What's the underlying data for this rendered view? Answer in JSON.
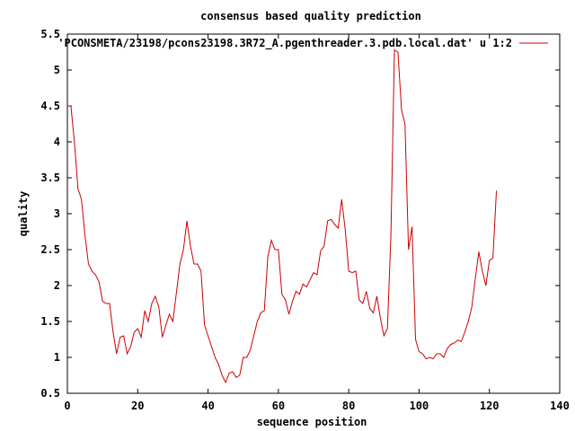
{
  "chart_data": {
    "type": "line",
    "title": "consensus based quality prediction",
    "xlabel": "sequence position",
    "ylabel": "quality",
    "xlim": [
      0,
      140
    ],
    "ylim": [
      0.5,
      5.5
    ],
    "xticks": [
      0,
      20,
      40,
      60,
      80,
      100,
      120,
      140
    ],
    "yticks": [
      0.5,
      1,
      1.5,
      2,
      2.5,
      3,
      3.5,
      4,
      4.5,
      5,
      5.5
    ],
    "xtick_labels": [
      "0",
      "20",
      "40",
      "60",
      "80",
      "100",
      "120",
      "140"
    ],
    "ytick_labels": [
      "0.5",
      "1",
      "1.5",
      "2",
      "2.5",
      "3",
      "3.5",
      "4",
      "4.5",
      "5",
      "5.5"
    ],
    "grid": false,
    "legend_position": "top-right",
    "series": [
      {
        "name": "'PCONSMETA/23198/pcons23198.3R72_A.pgenthreader.3.pdb.local.dat' u 1:2",
        "color": "#cc0000",
        "x": [
          0,
          1,
          2,
          3,
          4,
          5,
          6,
          7,
          8,
          9,
          10,
          11,
          12,
          13,
          14,
          15,
          16,
          17,
          18,
          19,
          20,
          21,
          22,
          23,
          24,
          25,
          26,
          27,
          28,
          29,
          30,
          31,
          32,
          33,
          34,
          35,
          36,
          37,
          38,
          39,
          40,
          41,
          42,
          43,
          44,
          45,
          46,
          47,
          48,
          49,
          50,
          51,
          52,
          53,
          54,
          55,
          56,
          57,
          58,
          59,
          60,
          61,
          62,
          63,
          64,
          65,
          66,
          67,
          68,
          69,
          70,
          71,
          72,
          73,
          74,
          75,
          76,
          77,
          78,
          79,
          80,
          81,
          82,
          83,
          84,
          85,
          86,
          87,
          88,
          89,
          90,
          91,
          92,
          93,
          94,
          95,
          96,
          97,
          98,
          99,
          100,
          101,
          102,
          103,
          104,
          105,
          106,
          107,
          108,
          109,
          110,
          111,
          112,
          113,
          114,
          115,
          116,
          117,
          118,
          119,
          120,
          121,
          122
        ],
        "y": [
          4.5,
          4.5,
          4.0,
          3.35,
          3.2,
          2.7,
          2.3,
          2.2,
          2.15,
          2.05,
          1.78,
          1.75,
          1.75,
          1.35,
          1.05,
          1.28,
          1.3,
          1.05,
          1.15,
          1.35,
          1.4,
          1.28,
          1.65,
          1.5,
          1.75,
          1.85,
          1.7,
          1.28,
          1.45,
          1.6,
          1.5,
          1.9,
          2.3,
          2.5,
          2.9,
          2.55,
          2.3,
          2.3,
          2.2,
          1.45,
          1.3,
          1.15,
          1.0,
          0.9,
          0.75,
          0.65,
          0.78,
          0.8,
          0.72,
          0.75,
          1.0,
          1.0,
          1.1,
          1.3,
          1.5,
          1.62,
          1.65,
          2.4,
          2.63,
          2.5,
          2.5,
          1.88,
          1.8,
          1.6,
          1.78,
          1.92,
          1.88,
          2.02,
          1.98,
          2.08,
          2.18,
          2.15,
          2.48,
          2.55,
          2.9,
          2.92,
          2.85,
          2.8,
          3.2,
          2.78,
          2.2,
          2.18,
          2.2,
          1.8,
          1.75,
          1.92,
          1.68,
          1.62,
          1.85,
          1.55,
          1.3,
          1.4,
          2.7,
          5.28,
          5.25,
          4.45,
          4.25,
          2.5,
          2.82,
          1.25,
          1.08,
          1.05,
          0.98,
          1.0,
          0.98,
          1.05,
          1.05,
          1.0,
          1.12,
          1.18,
          1.2,
          1.24,
          1.22,
          1.35,
          1.5,
          1.7,
          2.1,
          2.47,
          2.2,
          2.0,
          2.35,
          2.38,
          3.32
        ]
      }
    ]
  }
}
